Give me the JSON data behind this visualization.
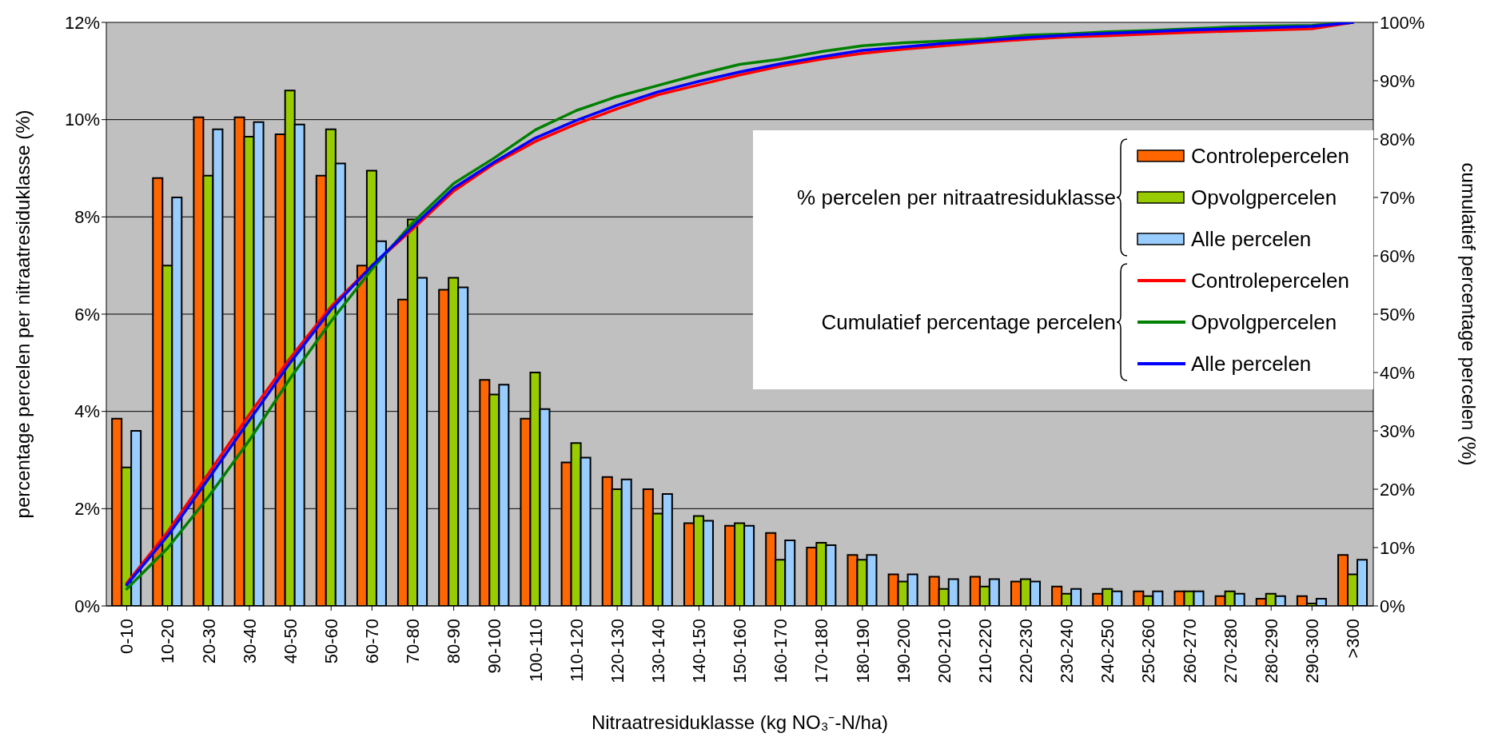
{
  "chart_data": {
    "type": "bar",
    "xlabel": "Nitraatresiduklasse (kg NO₃⁻-N/ha)",
    "ylabel": "percentage percelen per nitraatresiduklasse (%)",
    "y2label": "cumulatief percentage percelen (%)",
    "categories": [
      "0-10",
      "10-20",
      "20-30",
      "30-40",
      "40-50",
      "50-60",
      "60-70",
      "70-80",
      "80-90",
      "90-100",
      "100-110",
      "110-120",
      "120-130",
      "130-140",
      "140-150",
      "150-160",
      "160-170",
      "170-180",
      "180-190",
      "190-200",
      "200-210",
      "210-220",
      "220-230",
      "230-240",
      "240-250",
      "250-260",
      "260-270",
      "270-280",
      "280-290",
      "290-300",
      ">300"
    ],
    "series": [
      {
        "name": "Controlepercelen",
        "color": "#ff6600",
        "values": [
          3.85,
          8.8,
          10.05,
          10.05,
          9.7,
          8.85,
          7.0,
          6.3,
          6.5,
          4.65,
          3.85,
          2.95,
          2.65,
          2.4,
          1.7,
          1.65,
          1.5,
          1.2,
          1.05,
          0.65,
          0.6,
          0.6,
          0.5,
          0.4,
          0.25,
          0.3,
          0.3,
          0.2,
          0.15,
          0.2,
          1.05
        ]
      },
      {
        "name": "Opvolgpercelen",
        "color": "#99cc00",
        "values": [
          2.85,
          7.0,
          8.85,
          9.65,
          10.6,
          9.8,
          8.95,
          7.95,
          6.75,
          4.35,
          4.8,
          3.35,
          2.4,
          1.9,
          1.85,
          1.7,
          0.95,
          1.3,
          0.95,
          0.5,
          0.35,
          0.4,
          0.55,
          0.25,
          0.35,
          0.2,
          0.3,
          0.3,
          0.25,
          0.05,
          0.65
        ]
      },
      {
        "name": "Alle percelen",
        "color": "#99ccff",
        "values": [
          3.6,
          8.4,
          9.8,
          9.95,
          9.9,
          9.1,
          7.5,
          6.75,
          6.55,
          4.55,
          4.05,
          3.05,
          2.6,
          2.3,
          1.75,
          1.65,
          1.35,
          1.25,
          1.05,
          0.65,
          0.55,
          0.55,
          0.5,
          0.35,
          0.3,
          0.3,
          0.3,
          0.25,
          0.2,
          0.15,
          0.95
        ]
      },
      {
        "type": "line",
        "axis": "y2",
        "name": "Controlepercelen",
        "color": "#ff0000",
        "values": [
          3.9,
          12.7,
          22.7,
          32.8,
          42.5,
          51.3,
          58.3,
          64.6,
          71.1,
          75.8,
          79.6,
          82.6,
          85.2,
          87.6,
          89.3,
          91.0,
          92.5,
          93.7,
          94.7,
          95.4,
          96.0,
          96.6,
          97.1,
          97.5,
          97.7,
          98.0,
          98.3,
          98.5,
          98.7,
          98.9,
          100
        ]
      },
      {
        "type": "line",
        "axis": "y2",
        "name": "Opvolgpercelen",
        "color": "#008000",
        "values": [
          2.9,
          9.9,
          18.7,
          28.4,
          39.0,
          48.8,
          57.7,
          65.7,
          72.4,
          76.8,
          81.6,
          84.9,
          87.3,
          89.2,
          91.1,
          92.8,
          93.7,
          95.0,
          96.0,
          96.5,
          96.8,
          97.2,
          97.8,
          98.0,
          98.4,
          98.6,
          98.9,
          99.2,
          99.4,
          99.5,
          100
        ]
      },
      {
        "type": "line",
        "axis": "y2",
        "name": "Alle percelen",
        "color": "#0000ff",
        "values": [
          3.6,
          12.0,
          21.8,
          31.8,
          41.7,
          50.8,
          58.3,
          65.0,
          71.6,
          76.1,
          80.2,
          83.2,
          85.8,
          88.1,
          89.9,
          91.5,
          92.9,
          94.1,
          95.2,
          95.8,
          96.4,
          96.9,
          97.4,
          97.8,
          98.1,
          98.4,
          98.7,
          98.9,
          99.1,
          99.3,
          100
        ]
      }
    ],
    "ylim": [
      0,
      12
    ],
    "yticks": [
      {
        "value": 0,
        "label": "0%"
      },
      {
        "value": 2,
        "label": "2%"
      },
      {
        "value": 4,
        "label": "4%"
      },
      {
        "value": 6,
        "label": "6%"
      },
      {
        "value": 8,
        "label": "8%"
      },
      {
        "value": 10,
        "label": "10%"
      },
      {
        "value": 12,
        "label": "12%"
      }
    ],
    "y2lim": [
      0,
      100
    ],
    "y2ticks": [
      {
        "value": 0,
        "label": "0%"
      },
      {
        "value": 10,
        "label": "10%"
      },
      {
        "value": 20,
        "label": "20%"
      },
      {
        "value": 30,
        "label": "30%"
      },
      {
        "value": 40,
        "label": "40%"
      },
      {
        "value": 50,
        "label": "50%"
      },
      {
        "value": 60,
        "label": "60%"
      },
      {
        "value": 70,
        "label": "70%"
      },
      {
        "value": 80,
        "label": "80%"
      },
      {
        "value": 90,
        "label": "90%"
      },
      {
        "value": 100,
        "label": "100%"
      }
    ],
    "annotations": [
      "% percelen per nitraatresiduklasse",
      "Cumulatief percentage percelen"
    ],
    "grid": "y",
    "legend": "top right",
    "marker": "none",
    "line_style": "solid"
  }
}
